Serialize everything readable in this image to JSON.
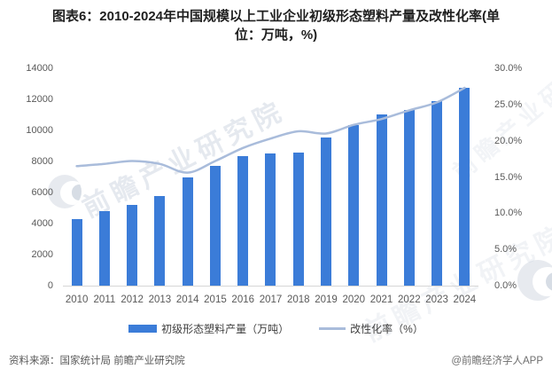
{
  "title": {
    "line1": "图表6：2010-2024年中国规模以上工业企业初级形态塑料产量及改性化率(单",
    "line2": "位：万吨，%)"
  },
  "chart_data": {
    "type": "bar+line",
    "title": "图表6：2010-2024年中国规模以上工业企业初级形态塑料产量及改性化率(单位：万吨，%)",
    "categories": [
      "2010",
      "2011",
      "2012",
      "2013",
      "2014",
      "2015",
      "2016",
      "2017",
      "2018",
      "2019",
      "2020",
      "2021",
      "2022",
      "2023",
      "2024"
    ],
    "series": [
      {
        "name": "初级形态塑料产量（万吨）",
        "type": "bar",
        "axis": "left",
        "color": "#3b7cd8",
        "values": [
          4300,
          4800,
          5200,
          5800,
          6950,
          7700,
          8350,
          8500,
          8550,
          9550,
          10350,
          11050,
          11300,
          11900,
          12750
        ]
      },
      {
        "name": "改性化率（%）",
        "type": "line",
        "axis": "right",
        "color": "#a9bcdb",
        "values": [
          16.5,
          16.8,
          17.2,
          16.8,
          15.6,
          17.2,
          19.0,
          20.3,
          21.3,
          21.0,
          22.2,
          23.0,
          24.2,
          25.3,
          27.3
        ]
      }
    ],
    "left_axis": {
      "min": 0,
      "max": 14000,
      "step": 2000,
      "ticks": [
        "14000",
        "12000",
        "10000",
        "8000",
        "6000",
        "4000",
        "2000",
        "0"
      ]
    },
    "right_axis": {
      "min": 0,
      "max": 30,
      "step": 5,
      "ticks": [
        "30.0%",
        "25.0%",
        "20.0%",
        "15.0%",
        "10.0%",
        "5.0%",
        "0.0%"
      ]
    },
    "grid": false,
    "legend_position": "bottom",
    "smooth_line": true
  },
  "footer": {
    "source": "资料来源：国家统计局 前瞻产业研究院",
    "credit": "@前瞻经济学人APP"
  },
  "watermark": {
    "text": "前瞻产业研究院",
    "logo": "qianzhan-swoosh-logo"
  }
}
